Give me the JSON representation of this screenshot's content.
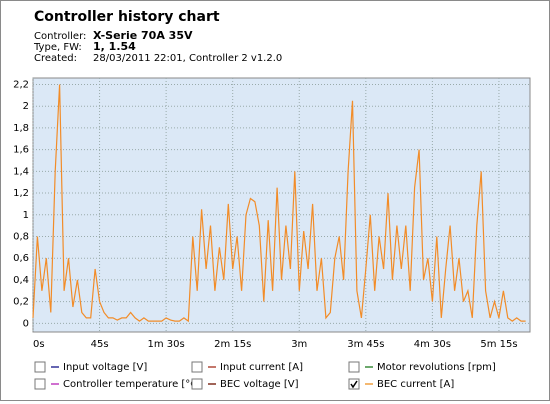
{
  "chart_data": {
    "type": "line",
    "title": "Controller history chart",
    "info": [
      {
        "label": "Controller:",
        "value": "X-Serie 70A 35V"
      },
      {
        "label": "Type, FW:",
        "value": "1, 1.54"
      },
      {
        "label": "Created:",
        "value": "28/03/2011 22:01, Controller 2 v1.2.0"
      }
    ],
    "xlim": [
      0,
      336
    ],
    "xticks": [
      {
        "value": 0,
        "label": "0s"
      },
      {
        "value": 45,
        "label": "45s"
      },
      {
        "value": 90,
        "label": "1m 30s"
      },
      {
        "value": 135,
        "label": "2m 15s"
      },
      {
        "value": 180,
        "label": "3m"
      },
      {
        "value": 225,
        "label": "3m 45s"
      },
      {
        "value": 270,
        "label": "4m 30s"
      },
      {
        "value": 315,
        "label": "5m 15s"
      }
    ],
    "ylim": [
      -0.08,
      2.26
    ],
    "yticks": [
      0,
      {
        "value": 0.2,
        "label": "0,2"
      },
      {
        "value": 0.4,
        "label": "0,4"
      },
      {
        "value": 0.6,
        "label": "0,6"
      },
      {
        "value": 0.8,
        "label": "0,8"
      },
      1,
      {
        "value": 1.2,
        "label": "1,2"
      },
      {
        "value": 1.4,
        "label": "1,4"
      },
      {
        "value": 1.6,
        "label": "1,6"
      },
      {
        "value": 1.8,
        "label": "1,8"
      },
      2,
      {
        "value": 2.2,
        "label": "2,2"
      }
    ],
    "grid": true,
    "x": [
      0,
      3,
      6,
      9,
      12,
      15,
      18,
      21,
      24,
      27,
      30,
      33,
      36,
      39,
      42,
      45,
      48,
      51,
      54,
      57,
      60,
      63,
      66,
      69,
      72,
      75,
      78,
      81,
      84,
      87,
      90,
      93,
      96,
      99,
      102,
      105,
      108,
      111,
      114,
      117,
      120,
      123,
      126,
      129,
      132,
      135,
      138,
      141,
      144,
      147,
      150,
      153,
      156,
      159,
      162,
      165,
      168,
      171,
      174,
      177,
      180,
      183,
      186,
      189,
      192,
      195,
      198,
      201,
      204,
      207,
      210,
      213,
      216,
      219,
      222,
      225,
      228,
      231,
      234,
      237,
      240,
      243,
      246,
      249,
      252,
      255,
      258,
      261,
      264,
      267,
      270,
      273,
      276,
      279,
      282,
      285,
      288,
      291,
      294,
      297,
      300,
      303,
      306,
      309,
      312,
      315,
      318,
      321,
      324,
      327,
      330,
      333
    ],
    "series": [
      {
        "name": "BEC current [A]",
        "color": "#f28c28",
        "values": [
          0.05,
          0.8,
          0.3,
          0.6,
          0.1,
          1.4,
          2.2,
          0.3,
          0.6,
          0.15,
          0.4,
          0.1,
          0.05,
          0.05,
          0.5,
          0.2,
          0.1,
          0.05,
          0.05,
          0.03,
          0.05,
          0.05,
          0.1,
          0.05,
          0.02,
          0.05,
          0.02,
          0.02,
          0.02,
          0.02,
          0.05,
          0.03,
          0.02,
          0.02,
          0.05,
          0.02,
          0.8,
          0.3,
          1.05,
          0.5,
          0.9,
          0.3,
          0.7,
          0.4,
          1.1,
          0.5,
          0.8,
          0.3,
          1.0,
          1.15,
          1.12,
          0.9,
          0.2,
          0.95,
          0.3,
          1.25,
          0.4,
          0.9,
          0.5,
          1.4,
          0.3,
          0.85,
          0.5,
          1.1,
          0.3,
          0.6,
          0.05,
          0.1,
          0.6,
          0.8,
          0.4,
          1.4,
          2.05,
          0.3,
          0.05,
          0.5,
          1.0,
          0.3,
          0.8,
          0.5,
          1.2,
          0.4,
          0.9,
          0.5,
          0.9,
          0.3,
          1.25,
          1.6,
          0.4,
          0.6,
          0.2,
          0.8,
          0.05,
          0.5,
          0.9,
          0.3,
          0.6,
          0.2,
          0.3,
          0.05,
          0.9,
          1.4,
          0.3,
          0.05,
          0.2,
          0.05,
          0.3,
          0.05,
          0.02,
          0.05,
          0.02,
          0.02
        ]
      }
    ],
    "legend": [
      {
        "name": "Input voltage [V]",
        "color": "#333399",
        "checked": false
      },
      {
        "name": "Input current [A]",
        "color": "#b04a3a",
        "checked": false
      },
      {
        "name": "Motor revolutions [rpm]",
        "color": "#3a8a3a",
        "checked": false
      },
      {
        "name": "Controller temperature [°C]",
        "color": "#c040c0",
        "checked": false
      },
      {
        "name": "BEC voltage [V]",
        "color": "#803020",
        "checked": false
      },
      {
        "name": "BEC current [A]",
        "color": "#f0a040",
        "checked": true
      }
    ]
  }
}
